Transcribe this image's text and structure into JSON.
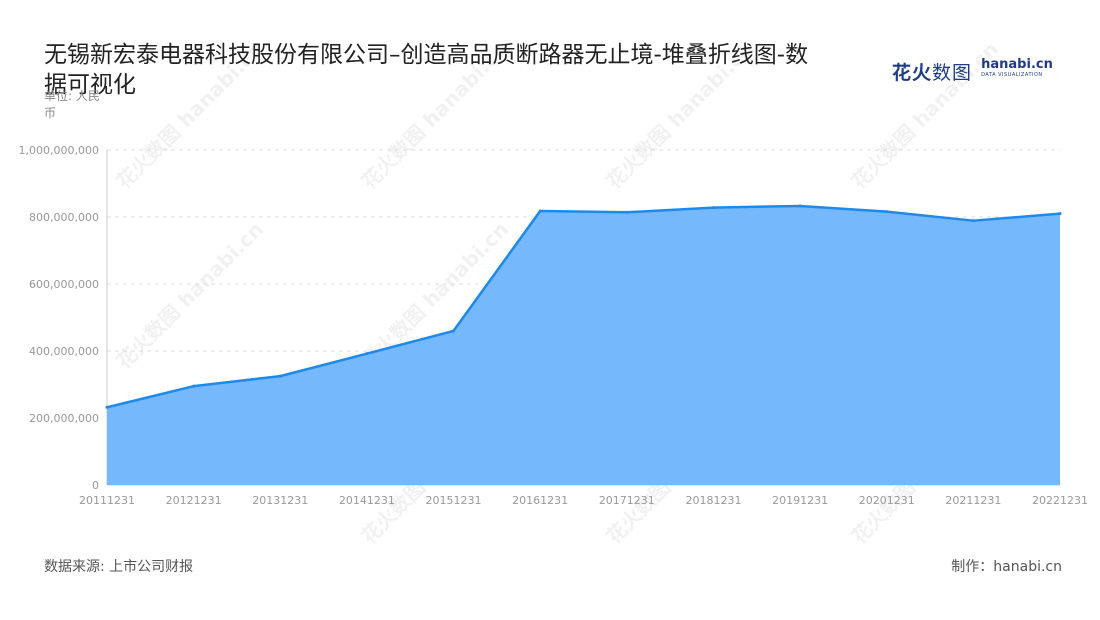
{
  "brand": {
    "cn_a": "花火",
    "cn_b": "数图",
    "en": "hanabi.cn",
    "en_sub": "DATA VISUALIZATION"
  },
  "watermark": "花火数图 hanabi.cn",
  "footer": {
    "source": "数据来源: 上市公司财报",
    "maker": "制作：hanabi.cn"
  },
  "chart_data": {
    "type": "area",
    "title": "无锡新宏泰电器科技股份有限公司–创造高品质断路器无止境-堆叠折线图-数据可视化",
    "unit_label": "单位: 人民币",
    "x": [
      "20111231",
      "20121231",
      "20131231",
      "20141231",
      "20151231",
      "20161231",
      "20171231",
      "20181231",
      "20191231",
      "20201231",
      "20211231",
      "20221231"
    ],
    "series": [
      {
        "values": [
          232000000,
          295000000,
          325000000,
          392000000,
          460000000,
          818000000,
          814000000,
          828000000,
          833000000,
          816000000,
          789000000,
          810000000
        ]
      }
    ],
    "y_ticks": [
      "0",
      "200,000,000",
      "400,000,000",
      "600,000,000",
      "800,000,000",
      "1,000,000,000"
    ],
    "ylim": [
      0,
      1000000000
    ],
    "grid": true,
    "colors": {
      "fill": "#75b8fc",
      "line": "#1f89ea",
      "grid": "#dddddd",
      "axis": "#cccccc"
    }
  }
}
